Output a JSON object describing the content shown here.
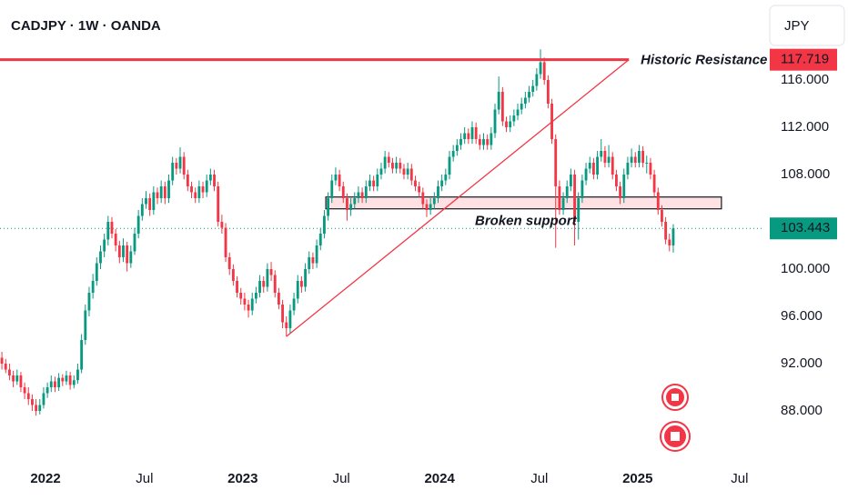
{
  "chart_data": {
    "type": "candlestick",
    "title": "CADJPY · 1W · OANDA",
    "currency": "JPY",
    "up_color": "#089981",
    "down_color": "#f23645",
    "xlim": [
      -0.5,
      201
    ],
    "ylim": [
      83.54,
      122.77
    ],
    "xticks": [
      {
        "value": 11.5,
        "label": "2022"
      },
      {
        "value": 37.6,
        "label": "Jul"
      },
      {
        "value": 63.5,
        "label": "2023"
      },
      {
        "value": 89.5,
        "label": "Jul"
      },
      {
        "value": 115.4,
        "label": "2024"
      },
      {
        "value": 141.7,
        "label": "Jul"
      },
      {
        "value": 167.6,
        "label": "2025"
      },
      {
        "value": 194.5,
        "label": "Jul"
      }
    ],
    "yticks": [
      {
        "value": 116,
        "label": "116.000"
      },
      {
        "value": 112,
        "label": "112.000"
      },
      {
        "value": 108,
        "label": "108.000"
      },
      {
        "value": 100,
        "label": "100.000"
      },
      {
        "value": 96,
        "label": "96.000"
      },
      {
        "value": 92,
        "label": "92.000"
      },
      {
        "value": 88,
        "label": "88.000"
      }
    ],
    "last_price": 103.443,
    "resistance": {
      "value": 117.719,
      "label": "Historic Resistance"
    },
    "trendline": {
      "start": [
        75,
        94.3
      ],
      "end": [
        165.3,
        117.719
      ]
    },
    "support_zone": {
      "x": [
        85.4,
        189.7
      ],
      "y": [
        105.1,
        106.1
      ],
      "label": "Broken support"
    },
    "candles": [
      [
        92.5,
        93,
        91.5,
        92
      ],
      [
        92,
        92.4,
        91.2,
        91.5
      ],
      [
        91.5,
        92,
        90.6,
        91
      ],
      [
        91,
        91.4,
        90,
        90.5
      ],
      [
        90.5,
        91.5,
        90.2,
        91
      ],
      [
        91,
        91.3,
        89.6,
        90
      ],
      [
        90,
        90.4,
        89,
        89.5
      ],
      [
        89.5,
        90,
        88.5,
        89
      ],
      [
        89,
        89.4,
        88,
        88.5
      ],
      [
        88.5,
        89,
        87.6,
        88
      ],
      [
        88,
        89,
        87.7,
        88.5
      ],
      [
        88.5,
        90,
        88.2,
        89.5
      ],
      [
        89.5,
        90.4,
        89.1,
        90
      ],
      [
        90,
        91,
        89.6,
        90.5
      ],
      [
        90.5,
        90.9,
        89.6,
        90
      ],
      [
        90,
        91.2,
        89.7,
        90.8
      ],
      [
        90.8,
        91.1,
        90.1,
        90.5
      ],
      [
        90.5,
        91.4,
        90.2,
        91
      ],
      [
        91,
        91.3,
        89.8,
        90.2
      ],
      [
        90.2,
        91,
        89.9,
        90.6
      ],
      [
        90.6,
        92,
        90.3,
        91.5
      ],
      [
        91.5,
        94.5,
        91.2,
        94
      ],
      [
        94,
        97,
        93.6,
        96.5
      ],
      [
        96.5,
        98.5,
        96,
        98
      ],
      [
        98,
        99.6,
        97.5,
        99
      ],
      [
        99,
        101,
        98.6,
        100.5
      ],
      [
        100.5,
        102,
        100,
        101.5
      ],
      [
        101.5,
        103,
        101,
        102.5
      ],
      [
        102.5,
        104.5,
        102,
        104
      ],
      [
        104,
        104.4,
        102.6,
        103
      ],
      [
        103,
        103.4,
        101.5,
        102
      ],
      [
        102,
        102.4,
        100.5,
        101
      ],
      [
        101,
        102.6,
        100.6,
        102
      ],
      [
        102,
        102.3,
        99.8,
        100.5
      ],
      [
        100.5,
        102,
        100.1,
        101.5
      ],
      [
        101.5,
        103.5,
        101.2,
        103
      ],
      [
        103,
        105,
        102.6,
        104.5
      ],
      [
        104.5,
        106,
        104.1,
        105.5
      ],
      [
        105.5,
        106.6,
        105.1,
        106
      ],
      [
        106,
        106.4,
        104.5,
        105
      ],
      [
        105,
        107,
        104.6,
        106.5
      ],
      [
        106.5,
        106.9,
        105.5,
        106
      ],
      [
        106,
        107.5,
        105.6,
        107
      ],
      [
        107,
        107.4,
        105.5,
        106
      ],
      [
        106,
        108,
        105.6,
        107.5
      ],
      [
        107.5,
        109.5,
        107.1,
        109
      ],
      [
        109,
        109.4,
        108,
        108.5
      ],
      [
        108.5,
        110.3,
        108.1,
        109.5
      ],
      [
        109.5,
        109.9,
        107.6,
        108
      ],
      [
        108,
        108.4,
        106.6,
        107
      ],
      [
        107,
        107.4,
        106,
        106.5
      ],
      [
        106.5,
        106.9,
        105.6,
        106
      ],
      [
        106,
        107.5,
        105.6,
        107
      ],
      [
        107,
        107.4,
        106,
        106.5
      ],
      [
        106.5,
        108,
        106.1,
        107.5
      ],
      [
        107.5,
        108.5,
        107.1,
        108
      ],
      [
        108,
        108.4,
        106.6,
        107
      ],
      [
        107,
        107.4,
        103.6,
        104
      ],
      [
        104,
        104.6,
        103,
        103.5
      ],
      [
        103.5,
        103.9,
        100.6,
        101
      ],
      [
        101,
        101.4,
        99.5,
        100
      ],
      [
        100,
        100.4,
        98.6,
        99
      ],
      [
        99,
        99.4,
        97.6,
        98
      ],
      [
        98,
        98.4,
        97,
        97.5
      ],
      [
        97.5,
        98,
        96.5,
        97
      ],
      [
        97,
        97.4,
        95.9,
        96.5
      ],
      [
        96.5,
        98,
        96.1,
        97.5
      ],
      [
        97.5,
        98.5,
        97.1,
        98
      ],
      [
        98,
        99.5,
        97.6,
        99
      ],
      [
        99,
        99.4,
        98,
        98.5
      ],
      [
        98.5,
        100.5,
        98.1,
        100
      ],
      [
        100,
        100.6,
        99,
        99.5
      ],
      [
        99.5,
        99.9,
        97.6,
        98
      ],
      [
        98,
        98.4,
        96.6,
        97
      ],
      [
        97,
        97.4,
        95,
        95.5
      ],
      [
        95.5,
        96,
        94.3,
        95
      ],
      [
        95,
        97,
        94.6,
        96.5
      ],
      [
        96.5,
        98,
        96.1,
        97.5
      ],
      [
        97.5,
        99.5,
        97.1,
        99
      ],
      [
        99,
        99.4,
        98,
        98.5
      ],
      [
        98.5,
        100.5,
        98.1,
        100
      ],
      [
        100,
        101.5,
        99.6,
        101
      ],
      [
        101,
        101.4,
        100,
        100.5
      ],
      [
        100.5,
        102.5,
        100.1,
        102
      ],
      [
        102,
        103.5,
        101.6,
        103
      ],
      [
        103,
        105,
        102.6,
        104.5
      ],
      [
        104.5,
        106.5,
        104.1,
        106
      ],
      [
        106,
        108,
        105.6,
        107.5
      ],
      [
        107.5,
        108.6,
        107.1,
        108
      ],
      [
        108,
        108.4,
        106.6,
        107
      ],
      [
        107,
        107.4,
        105.6,
        106
      ],
      [
        106,
        106.4,
        104.1,
        105
      ],
      [
        105,
        106,
        104.5,
        105.5
      ],
      [
        105.5,
        106.5,
        105.1,
        106
      ],
      [
        106,
        107,
        105.6,
        106.5
      ],
      [
        106.5,
        106.9,
        105.6,
        106
      ],
      [
        106,
        107.5,
        105.6,
        107
      ],
      [
        107,
        108,
        106.6,
        107.5
      ],
      [
        107.5,
        107.9,
        106.6,
        107
      ],
      [
        107,
        108.5,
        106.6,
        108
      ],
      [
        108,
        109,
        107.6,
        108.5
      ],
      [
        108.5,
        110,
        108.1,
        109.5
      ],
      [
        109.5,
        109.9,
        108.6,
        109
      ],
      [
        109,
        109.4,
        108.1,
        108.5
      ],
      [
        108.5,
        109.5,
        108.1,
        109
      ],
      [
        109,
        109.4,
        108.1,
        108.5
      ],
      [
        108.5,
        108.9,
        107.6,
        108
      ],
      [
        108,
        109,
        107.6,
        108.5
      ],
      [
        108.5,
        108.9,
        107.1,
        107.5
      ],
      [
        107.5,
        107.9,
        106.6,
        107
      ],
      [
        107,
        107.4,
        106.1,
        106.5
      ],
      [
        106.5,
        106.9,
        105.1,
        105.5
      ],
      [
        105.5,
        105.9,
        104.4,
        105
      ],
      [
        105,
        106,
        104.6,
        105.5
      ],
      [
        105.5,
        106.5,
        105.1,
        106
      ],
      [
        106,
        107.5,
        105.6,
        107
      ],
      [
        107,
        108,
        106.6,
        107.5
      ],
      [
        107.5,
        108.5,
        107.1,
        108
      ],
      [
        108,
        110,
        107.6,
        109.5
      ],
      [
        109.5,
        110.5,
        109.1,
        110
      ],
      [
        110,
        111,
        109.6,
        110.5
      ],
      [
        110.5,
        111.5,
        110.1,
        111
      ],
      [
        111,
        112,
        110.6,
        111.5
      ],
      [
        111.5,
        111.9,
        110.6,
        111
      ],
      [
        111,
        112.5,
        110.6,
        112
      ],
      [
        112,
        112.4,
        110.6,
        111
      ],
      [
        111,
        111.4,
        110.1,
        110.5
      ],
      [
        110.5,
        111.5,
        110.1,
        111
      ],
      [
        111,
        111.4,
        110.1,
        110.5
      ],
      [
        110.5,
        112,
        110.1,
        111.5
      ],
      [
        111.5,
        114,
        111.1,
        113.5
      ],
      [
        113.5,
        116.3,
        113.1,
        115
      ],
      [
        115,
        115.4,
        112.1,
        112.5
      ],
      [
        112.5,
        112.9,
        111.6,
        112
      ],
      [
        112,
        113,
        111.6,
        112.5
      ],
      [
        112.5,
        113.5,
        112.1,
        113
      ],
      [
        113,
        114,
        112.6,
        113.5
      ],
      [
        113.5,
        114.5,
        113.1,
        114
      ],
      [
        114,
        115,
        113.6,
        114.5
      ],
      [
        114.5,
        115.5,
        114.1,
        115
      ],
      [
        115,
        116,
        114.6,
        115.5
      ],
      [
        115.5,
        117,
        115.1,
        116.5
      ],
      [
        116.5,
        118.6,
        116.1,
        117.5
      ],
      [
        117.5,
        117.9,
        115.6,
        116
      ],
      [
        116,
        116.4,
        113.6,
        114
      ],
      [
        114,
        114.4,
        110.6,
        111
      ],
      [
        111,
        111.4,
        101.8,
        107
      ],
      [
        107,
        107.5,
        104.6,
        105
      ],
      [
        105,
        106.5,
        104.6,
        106
      ],
      [
        106,
        107.5,
        105.6,
        107
      ],
      [
        107,
        108.5,
        106.6,
        108
      ],
      [
        108,
        108.4,
        102,
        104
      ],
      [
        104,
        106.5,
        102.5,
        106
      ],
      [
        106,
        108,
        105.6,
        107.5
      ],
      [
        107.5,
        109,
        107.1,
        108.5
      ],
      [
        108.5,
        109.5,
        108.1,
        109
      ],
      [
        109,
        109.4,
        107.6,
        108
      ],
      [
        108,
        110,
        107.6,
        109.5
      ],
      [
        109.5,
        111,
        109.1,
        110
      ],
      [
        110,
        110.4,
        108.6,
        109
      ],
      [
        109,
        110.5,
        108.6,
        109.5
      ],
      [
        109.5,
        109.9,
        107.6,
        108
      ],
      [
        108,
        108.4,
        106.6,
        107
      ],
      [
        107,
        107.4,
        105.5,
        106
      ],
      [
        106,
        108.5,
        105.6,
        108
      ],
      [
        108,
        109.5,
        107.6,
        109
      ],
      [
        109,
        110.2,
        108.6,
        109.5
      ],
      [
        109.5,
        109.9,
        108.6,
        109
      ],
      [
        109,
        110.5,
        108.6,
        110
      ],
      [
        110,
        110.4,
        108.6,
        109
      ],
      [
        109,
        109.6,
        108.1,
        109
      ],
      [
        109,
        109.4,
        107.6,
        108
      ],
      [
        108,
        108.4,
        106.1,
        106.5
      ],
      [
        106.5,
        106.9,
        104.6,
        105
      ],
      [
        105,
        105.4,
        103.6,
        104
      ],
      [
        104,
        104.4,
        102.1,
        102.5
      ],
      [
        102.5,
        103,
        101.5,
        102
      ],
      [
        102,
        103.8,
        101.4,
        103.443
      ]
    ]
  }
}
